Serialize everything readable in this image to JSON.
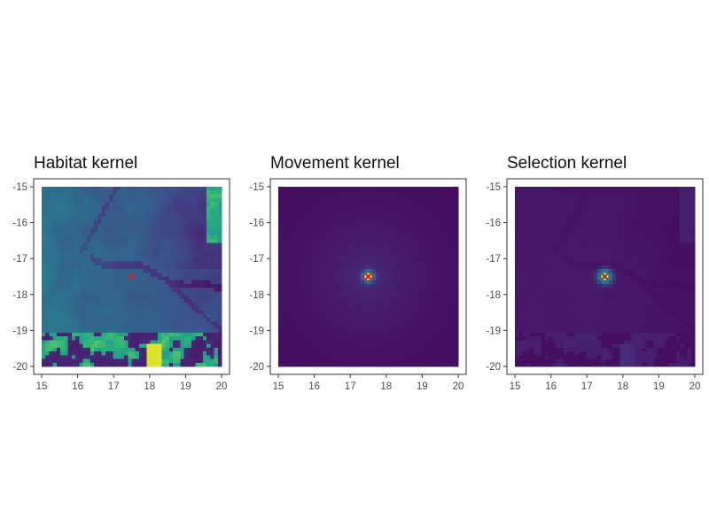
{
  "chart_data": [
    {
      "type": "heatmap",
      "title": "Habitat kernel",
      "xlim": [
        15,
        20
      ],
      "ylim": [
        -20,
        -15
      ],
      "x_ticks": [
        15,
        16,
        17,
        18,
        19,
        20
      ],
      "y_ticks": [
        -15,
        -16,
        -17,
        -18,
        -19,
        -20
      ],
      "colormap": "viridis",
      "marker": {
        "x": 17.5,
        "y": -17.5,
        "symbol": "×",
        "color": "#e41a1c"
      },
      "grid": false,
      "legend": "none"
    },
    {
      "type": "heatmap",
      "title": "Movement kernel",
      "xlim": [
        15,
        20
      ],
      "ylim": [
        -20,
        -15
      ],
      "x_ticks": [
        15,
        16,
        17,
        18,
        19,
        20
      ],
      "y_ticks": [
        -15,
        -16,
        -17,
        -18,
        -19,
        -20
      ],
      "colormap": "viridis",
      "marker": {
        "x": 17.5,
        "y": -17.5,
        "symbol": "×",
        "color": "#e41a1c"
      },
      "grid": false,
      "legend": "none"
    },
    {
      "type": "heatmap",
      "title": "Selection kernel",
      "xlim": [
        15,
        20
      ],
      "ylim": [
        -20,
        -15
      ],
      "x_ticks": [
        15,
        16,
        17,
        18,
        19,
        20
      ],
      "y_ticks": [
        -15,
        -16,
        -17,
        -18,
        -19,
        -20
      ],
      "colormap": "viridis",
      "marker": {
        "x": 17.5,
        "y": -17.5,
        "symbol": "×",
        "color": "#e41a1c"
      },
      "grid": false,
      "legend": "none"
    }
  ]
}
